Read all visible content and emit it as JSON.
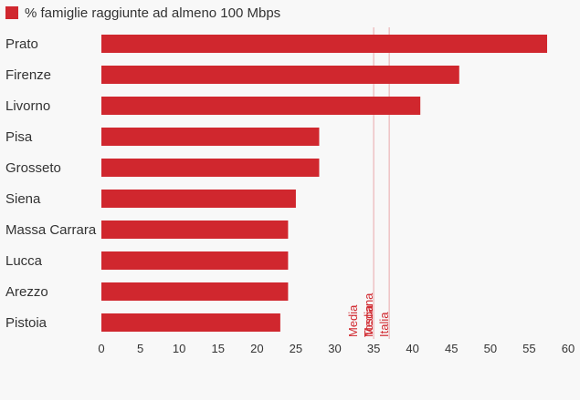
{
  "chart_data": {
    "type": "bar",
    "orientation": "horizontal",
    "categories": [
      "Prato",
      "Firenze",
      "Livorno",
      "Pisa",
      "Grosseto",
      "Siena",
      "Massa Carrara",
      "Lucca",
      "Arezzo",
      "Pistoia"
    ],
    "series": [
      {
        "name": "% famiglie raggiunte ad almeno 100 Mbps",
        "values": [
          57.3,
          46,
          41,
          28,
          28,
          25,
          24,
          24,
          24,
          23
        ],
        "color": "#d0272e"
      }
    ],
    "xlim": [
      0,
      60
    ],
    "x_ticks": [
      0,
      5,
      10,
      15,
      20,
      25,
      30,
      35,
      40,
      45,
      50,
      55,
      60
    ],
    "reference_lines": [
      {
        "value": 35,
        "label_lines": [
          "Media",
          "Toscana"
        ],
        "color": "#d0272e"
      },
      {
        "value": 37,
        "label_lines": [
          "Media",
          "Italia"
        ],
        "color": "#d0272e"
      }
    ],
    "legend_position": "top-left",
    "grid": false,
    "title": "",
    "xlabel": "",
    "ylabel": ""
  }
}
